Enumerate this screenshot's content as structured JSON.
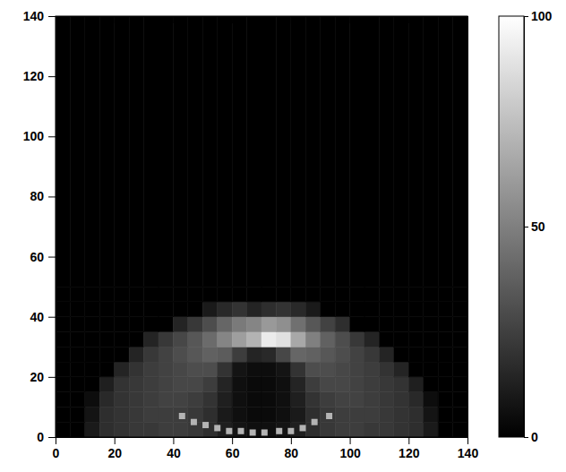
{
  "chart_data": {
    "type": "heatmap",
    "xlim": [
      0,
      140
    ],
    "ylim": [
      0,
      140
    ],
    "xticks": [
      0,
      20,
      40,
      60,
      80,
      100,
      120,
      140
    ],
    "yticks": [
      0,
      20,
      40,
      60,
      80,
      100,
      120,
      140
    ],
    "color": "gray",
    "cells": {
      "x_edges": [
        0,
        5,
        10,
        15,
        20,
        25,
        30,
        35,
        40,
        45,
        50,
        55,
        60,
        65,
        70,
        75,
        80,
        85,
        90,
        95,
        100,
        105,
        110,
        115,
        120,
        125,
        130,
        135,
        140
      ],
      "y_edges": [
        0,
        5,
        10,
        15,
        20,
        25,
        30,
        35,
        40,
        45,
        50,
        140
      ],
      "values": [
        [
          0,
          0,
          10,
          18,
          20,
          22,
          22,
          24,
          24,
          22,
          18,
          12,
          8,
          6,
          6,
          8,
          12,
          18,
          22,
          24,
          24,
          22,
          22,
          20,
          18,
          10,
          0,
          0
        ],
        [
          0,
          0,
          8,
          18,
          20,
          22,
          24,
          24,
          24,
          22,
          18,
          10,
          6,
          4,
          4,
          6,
          10,
          18,
          22,
          24,
          24,
          24,
          22,
          20,
          18,
          8,
          0,
          0
        ],
        [
          0,
          0,
          5,
          16,
          20,
          22,
          24,
          26,
          26,
          24,
          20,
          12,
          6,
          4,
          4,
          6,
          12,
          20,
          24,
          26,
          26,
          24,
          22,
          20,
          16,
          5,
          0,
          0
        ],
        [
          0,
          0,
          0,
          12,
          20,
          22,
          24,
          26,
          28,
          28,
          24,
          14,
          6,
          4,
          4,
          6,
          14,
          24,
          28,
          28,
          26,
          24,
          22,
          20,
          12,
          0,
          0,
          0
        ],
        [
          0,
          0,
          0,
          0,
          14,
          20,
          24,
          26,
          28,
          30,
          30,
          20,
          8,
          5,
          5,
          8,
          20,
          30,
          30,
          28,
          26,
          24,
          20,
          14,
          0,
          0,
          0,
          0
        ],
        [
          0,
          0,
          0,
          0,
          0,
          14,
          22,
          26,
          30,
          34,
          38,
          36,
          24,
          14,
          16,
          28,
          40,
          38,
          34,
          30,
          26,
          22,
          14,
          0,
          0,
          0,
          0,
          0
        ],
        [
          0,
          0,
          0,
          0,
          0,
          0,
          14,
          22,
          28,
          34,
          42,
          52,
          62,
          70,
          92,
          88,
          66,
          50,
          38,
          30,
          22,
          14,
          0,
          0,
          0,
          0,
          0,
          0
        ],
        [
          0,
          0,
          0,
          0,
          0,
          0,
          0,
          0,
          14,
          22,
          30,
          40,
          48,
          52,
          60,
          56,
          44,
          34,
          26,
          18,
          0,
          0,
          0,
          0,
          0,
          0,
          0,
          0
        ],
        [
          0,
          0,
          0,
          0,
          0,
          0,
          0,
          0,
          0,
          0,
          10,
          16,
          20,
          14,
          18,
          20,
          16,
          10,
          0,
          0,
          0,
          0,
          0,
          0,
          0,
          0,
          0,
          0
        ],
        [
          0,
          0,
          0,
          0,
          0,
          0,
          0,
          0,
          0,
          0,
          0,
          0,
          0,
          0,
          0,
          0,
          0,
          0,
          0,
          0,
          0,
          0,
          0,
          0,
          0,
          0,
          0,
          0
        ],
        [
          0,
          0,
          0,
          0,
          0,
          0,
          0,
          0,
          0,
          0,
          0,
          0,
          0,
          0,
          0,
          0,
          0,
          0,
          0,
          0,
          0,
          0,
          0,
          0,
          0,
          0,
          0,
          0
        ]
      ]
    },
    "colorbar": {
      "range": [
        0,
        100
      ],
      "ticks": [
        0,
        50,
        100
      ]
    },
    "series": [
      {
        "type": "scatter",
        "marker": "square",
        "color": "#b4b4b4",
        "x": [
          43,
          47,
          51,
          55,
          59,
          63,
          67,
          71,
          76,
          80,
          84,
          88,
          93
        ],
        "values": [
          7,
          5,
          4,
          3,
          2,
          2,
          1.5,
          1.5,
          2,
          2,
          3,
          5,
          7
        ]
      }
    ]
  }
}
